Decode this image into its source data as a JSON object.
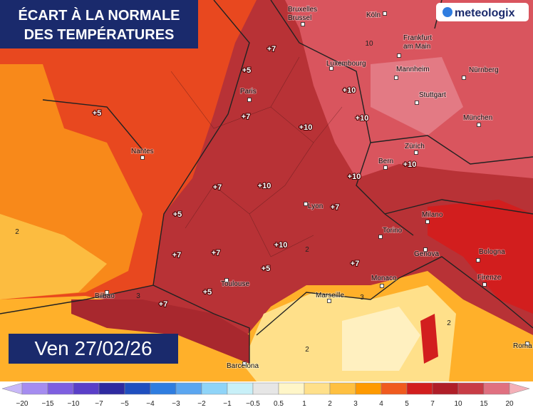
{
  "header": {
    "title_lines": [
      "ÉCART À LA NORMALE",
      "DES TEMPÉRATURES"
    ],
    "date": "Ven 27/02/26",
    "logo": "meteologix"
  },
  "cities": [
    "Bruxelles",
    "Brussel",
    "Köln",
    "Frankfurt",
    "am Main",
    "Luxembourg",
    "Mannheim",
    "Nürnberg",
    "Paris",
    "Stuttgart",
    "München",
    "Nantes",
    "Zürich",
    "Bern",
    "Lyon",
    "Milano",
    "Torino",
    "Genova",
    "Bologna",
    "Bilbao",
    "Toulouse",
    "Monaco",
    "Marseille",
    "Firenze",
    "Roma",
    "Barcelona"
  ],
  "anomaly_labels": [
    "+7",
    "+5",
    "+5",
    "+7",
    "+10",
    "+10",
    "+10",
    "+10",
    "+10",
    "+7",
    "+10",
    "+5",
    "+7",
    "+7",
    "+7",
    "+10",
    "+5",
    "+7",
    "+5",
    "+7",
    "2",
    "2",
    "3",
    "2",
    "2",
    "3",
    "10"
  ],
  "legend": {
    "labels": [
      "−20",
      "−15",
      "−10",
      "−7",
      "−5",
      "−4",
      "−3",
      "−2",
      "−1",
      "−0.5",
      "0.5",
      "1",
      "2",
      "3",
      "4",
      "5",
      "7",
      "10",
      "15",
      "20"
    ],
    "colors": [
      "#c8b8f8",
      "#a58cf0",
      "#7e5fe0",
      "#5a3fc8",
      "#2e2aa0",
      "#1f4fbf",
      "#2f7de0",
      "#5ba6f0",
      "#8fd4f8",
      "#c8f0f8",
      "#e6e6e6",
      "#fff6c8",
      "#ffe08a",
      "#ffc040",
      "#ff9a00",
      "#f05a1e",
      "#d21e1e",
      "#b01e28",
      "#c83c46",
      "#e07080",
      "#f4b0b8"
    ]
  }
}
